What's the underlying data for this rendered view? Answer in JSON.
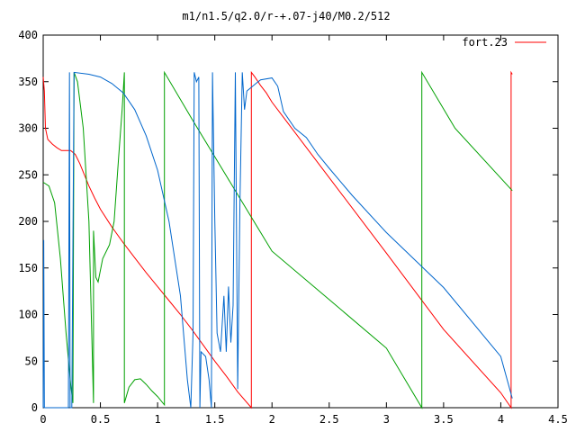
{
  "chart_data": {
    "type": "line",
    "title": "m1/n1.5/q2.0/r-+.07-j40/M0.2/512",
    "xlim": [
      0,
      4.5
    ],
    "ylim": [
      0,
      400
    ],
    "x_ticks": [
      "0",
      "0.5",
      "1",
      "1.5",
      "2",
      "2.5",
      "3",
      "3.5",
      "4",
      "4.5"
    ],
    "y_ticks": [
      "0",
      "50",
      "100",
      "150",
      "200",
      "250",
      "300",
      "350",
      "400"
    ],
    "grid": false,
    "legend_position": "top-right",
    "series": [
      {
        "name": "fort.23",
        "color": "#ff0000",
        "points": [
          [
            0,
            355
          ],
          [
            0.01,
            340
          ],
          [
            0.02,
            300
          ],
          [
            0.04,
            288
          ],
          [
            0.08,
            283
          ],
          [
            0.12,
            279
          ],
          [
            0.16,
            276
          ],
          [
            0.2,
            276
          ],
          [
            0.24,
            276
          ],
          [
            0.28,
            272
          ],
          [
            0.32,
            262
          ],
          [
            0.36,
            250
          ],
          [
            0.4,
            238
          ],
          [
            0.45,
            225
          ],
          [
            0.5,
            213
          ],
          [
            0.6,
            194
          ],
          [
            0.7,
            177
          ],
          [
            0.8,
            161
          ],
          [
            0.9,
            145
          ],
          [
            1.0,
            130
          ],
          [
            1.1,
            115
          ],
          [
            1.2,
            100
          ],
          [
            1.3,
            84
          ],
          [
            1.4,
            67
          ],
          [
            1.5,
            50
          ],
          [
            1.6,
            34
          ],
          [
            1.7,
            17
          ],
          [
            1.82,
            0
          ],
          [
            1.82,
            360
          ],
          [
            1.85,
            355
          ],
          [
            1.9,
            346
          ],
          [
            1.95,
            338
          ],
          [
            2.0,
            328
          ],
          [
            2.5,
            247
          ],
          [
            3.0,
            166
          ],
          [
            3.5,
            84
          ],
          [
            4.0,
            16
          ],
          [
            4.09,
            0
          ],
          [
            4.09,
            360
          ],
          [
            4.1,
            358
          ]
        ]
      },
      {
        "color": "#00a000",
        "points": [
          [
            0,
            242
          ],
          [
            0.05,
            238
          ],
          [
            0.1,
            220
          ],
          [
            0.15,
            160
          ],
          [
            0.2,
            80
          ],
          [
            0.24,
            25
          ],
          [
            0.26,
            5
          ],
          [
            0.27,
            360
          ],
          [
            0.3,
            350
          ],
          [
            0.35,
            300
          ],
          [
            0.4,
            200
          ],
          [
            0.44,
            5
          ],
          [
            0.44,
            190
          ],
          [
            0.46,
            140
          ],
          [
            0.48,
            135
          ],
          [
            0.52,
            160
          ],
          [
            0.58,
            175
          ],
          [
            0.62,
            200
          ],
          [
            0.66,
            270
          ],
          [
            0.69,
            320
          ],
          [
            0.71,
            360
          ],
          [
            0.71,
            5
          ],
          [
            0.75,
            22
          ],
          [
            0.8,
            30
          ],
          [
            0.85,
            31
          ],
          [
            0.9,
            25
          ],
          [
            0.95,
            18
          ],
          [
            1.0,
            12
          ],
          [
            1.06,
            3
          ],
          [
            1.06,
            360
          ],
          [
            1.3,
            310
          ],
          [
            1.6,
            249
          ],
          [
            2.0,
            168
          ],
          [
            2.5,
            116
          ],
          [
            3.0,
            64
          ],
          [
            3.31,
            0
          ],
          [
            3.31,
            360
          ],
          [
            3.6,
            300
          ],
          [
            4.1,
            233
          ]
        ]
      },
      {
        "color": "#0066cc",
        "points": [
          [
            0,
            0
          ],
          [
            0.005,
            180
          ],
          [
            0.01,
            0
          ],
          [
            0.22,
            0
          ],
          [
            0.23,
            360
          ],
          [
            0.235,
            0
          ],
          [
            0.25,
            0
          ],
          [
            0.27,
            360
          ],
          [
            0.4,
            358
          ],
          [
            0.5,
            355
          ],
          [
            0.6,
            348
          ],
          [
            0.7,
            338
          ],
          [
            0.8,
            320
          ],
          [
            0.9,
            292
          ],
          [
            1.0,
            255
          ],
          [
            1.1,
            200
          ],
          [
            1.2,
            120
          ],
          [
            1.26,
            30
          ],
          [
            1.29,
            0
          ],
          [
            1.31,
            80
          ],
          [
            1.32,
            360
          ],
          [
            1.34,
            350
          ],
          [
            1.36,
            355
          ],
          [
            1.37,
            0
          ],
          [
            1.38,
            60
          ],
          [
            1.42,
            55
          ],
          [
            1.45,
            30
          ],
          [
            1.47,
            0
          ],
          [
            1.48,
            360
          ],
          [
            1.5,
            200
          ],
          [
            1.52,
            80
          ],
          [
            1.55,
            60
          ],
          [
            1.58,
            120
          ],
          [
            1.6,
            60
          ],
          [
            1.62,
            130
          ],
          [
            1.64,
            70
          ],
          [
            1.66,
            110
          ],
          [
            1.68,
            360
          ],
          [
            1.7,
            20
          ],
          [
            1.72,
            220
          ],
          [
            1.74,
            360
          ],
          [
            1.76,
            320
          ],
          [
            1.78,
            340
          ],
          [
            1.82,
            344
          ],
          [
            1.86,
            348
          ],
          [
            1.9,
            352
          ],
          [
            2.0,
            354
          ],
          [
            2.05,
            345
          ],
          [
            2.1,
            318
          ],
          [
            2.2,
            300
          ],
          [
            2.3,
            290
          ],
          [
            2.4,
            272
          ],
          [
            2.5,
            257
          ],
          [
            2.7,
            228
          ],
          [
            3.0,
            188
          ],
          [
            3.5,
            129
          ],
          [
            4.0,
            55
          ],
          [
            4.1,
            10
          ]
        ]
      }
    ]
  }
}
